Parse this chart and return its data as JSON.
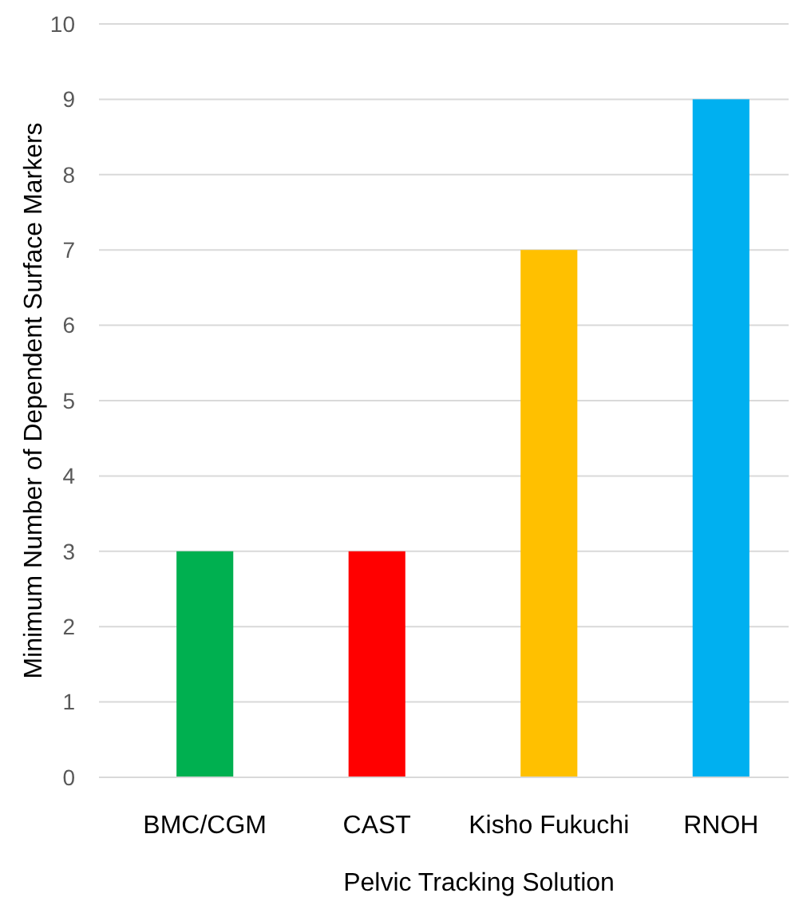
{
  "chart_data": {
    "type": "bar",
    "xlabel": "Pelvic Tracking Solution",
    "ylabel": "Minimum Number of Dependent Surface Markers",
    "categories": [
      "BMC/CGM",
      "CAST",
      "Kisho Fukuchi",
      "RNOH"
    ],
    "values": [
      3,
      3,
      7,
      9
    ],
    "colors": [
      "#00b050",
      "#ff0000",
      "#ffc000",
      "#00b0f0"
    ],
    "ylim": [
      0,
      10
    ],
    "yticks": [
      0,
      1,
      2,
      3,
      4,
      5,
      6,
      7,
      8,
      9,
      10
    ],
    "grid": "y"
  }
}
